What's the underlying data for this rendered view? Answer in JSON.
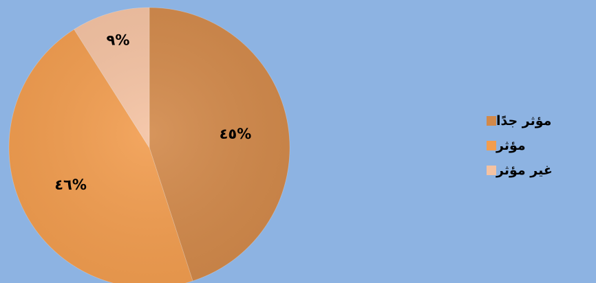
{
  "chart_data": {
    "type": "pie",
    "title": "",
    "slices": [
      {
        "name": "مؤثر جدًا",
        "value": 45,
        "label": "٤٥%",
        "color": "#d2894a"
      },
      {
        "name": "مؤثر",
        "value": 46,
        "label": "٤٦%",
        "color": "#f29d4f"
      },
      {
        "name": "غير مؤثر",
        "value": 9,
        "label": "٩%",
        "color": "#f4c2a2"
      }
    ],
    "start_angle_deg": 0,
    "direction": "clockwise",
    "legend_position": "right"
  },
  "legend": {
    "items": [
      {
        "label": "مؤثر جدًا",
        "color": "#d2894a"
      },
      {
        "label": "مؤثر",
        "color": "#f29d4f"
      },
      {
        "label": "غير مؤثر",
        "color": "#f4c2a2"
      }
    ]
  },
  "colors": {
    "background": "#8db3e2"
  }
}
